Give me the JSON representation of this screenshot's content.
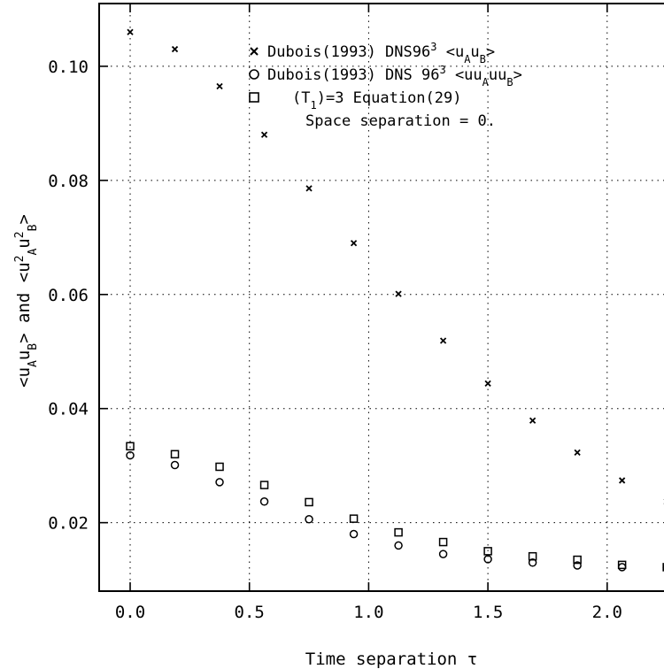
{
  "chart_data": {
    "type": "scatter",
    "title": "",
    "xlabel": "Time separation τ",
    "ylabel": "<uAuB> and <u²Au²B>",
    "xlim": [
      -0.13,
      2.32
    ],
    "ylim": [
      0.008,
      0.111
    ],
    "grid": true,
    "legend_position": "top-right",
    "x_ticks": [
      "0.0",
      "0.5",
      "1.0",
      "1.5",
      "2.0"
    ],
    "y_ticks": [
      "0.02",
      "0.04",
      "0.06",
      "0.08",
      "0.10"
    ],
    "annotation": "Space separation = 0.",
    "series": [
      {
        "name": "Dubois(1993) DNS96³ <uAuB>",
        "marker": "x",
        "x": [
          0.0,
          0.1875,
          0.375,
          0.5625,
          0.75,
          0.9375,
          1.125,
          1.3125,
          1.5,
          1.6875,
          1.875,
          2.0625,
          2.25
        ],
        "y": [
          0.106,
          0.103,
          0.0965,
          0.088,
          0.0786,
          0.069,
          0.0601,
          0.0519,
          0.0444,
          0.0379,
          0.0323,
          0.0274,
          0.0237
        ]
      },
      {
        "name": "Dubois(1993) DNS 96³ <uuAuuB>",
        "marker": "circle",
        "x": [
          0.0,
          0.1875,
          0.375,
          0.5625,
          0.75,
          0.9375,
          1.125,
          1.3125,
          1.5,
          1.6875,
          1.875,
          2.0625,
          2.25
        ],
        "y": [
          0.0318,
          0.0301,
          0.0271,
          0.0237,
          0.0206,
          0.018,
          0.016,
          0.0145,
          0.0136,
          0.013,
          0.0125,
          0.0122,
          0.0121
        ]
      },
      {
        "name": "(T1)=3 Equation(29)",
        "marker": "square",
        "x": [
          0.0,
          0.1875,
          0.375,
          0.5625,
          0.75,
          0.9375,
          1.125,
          1.3125,
          1.5,
          1.6875,
          1.875,
          2.0625,
          2.25
        ],
        "y": [
          0.0334,
          0.032,
          0.0298,
          0.0266,
          0.0236,
          0.0207,
          0.0183,
          0.0166,
          0.015,
          0.0141,
          0.0135,
          0.0126,
          0.0122
        ]
      }
    ]
  }
}
